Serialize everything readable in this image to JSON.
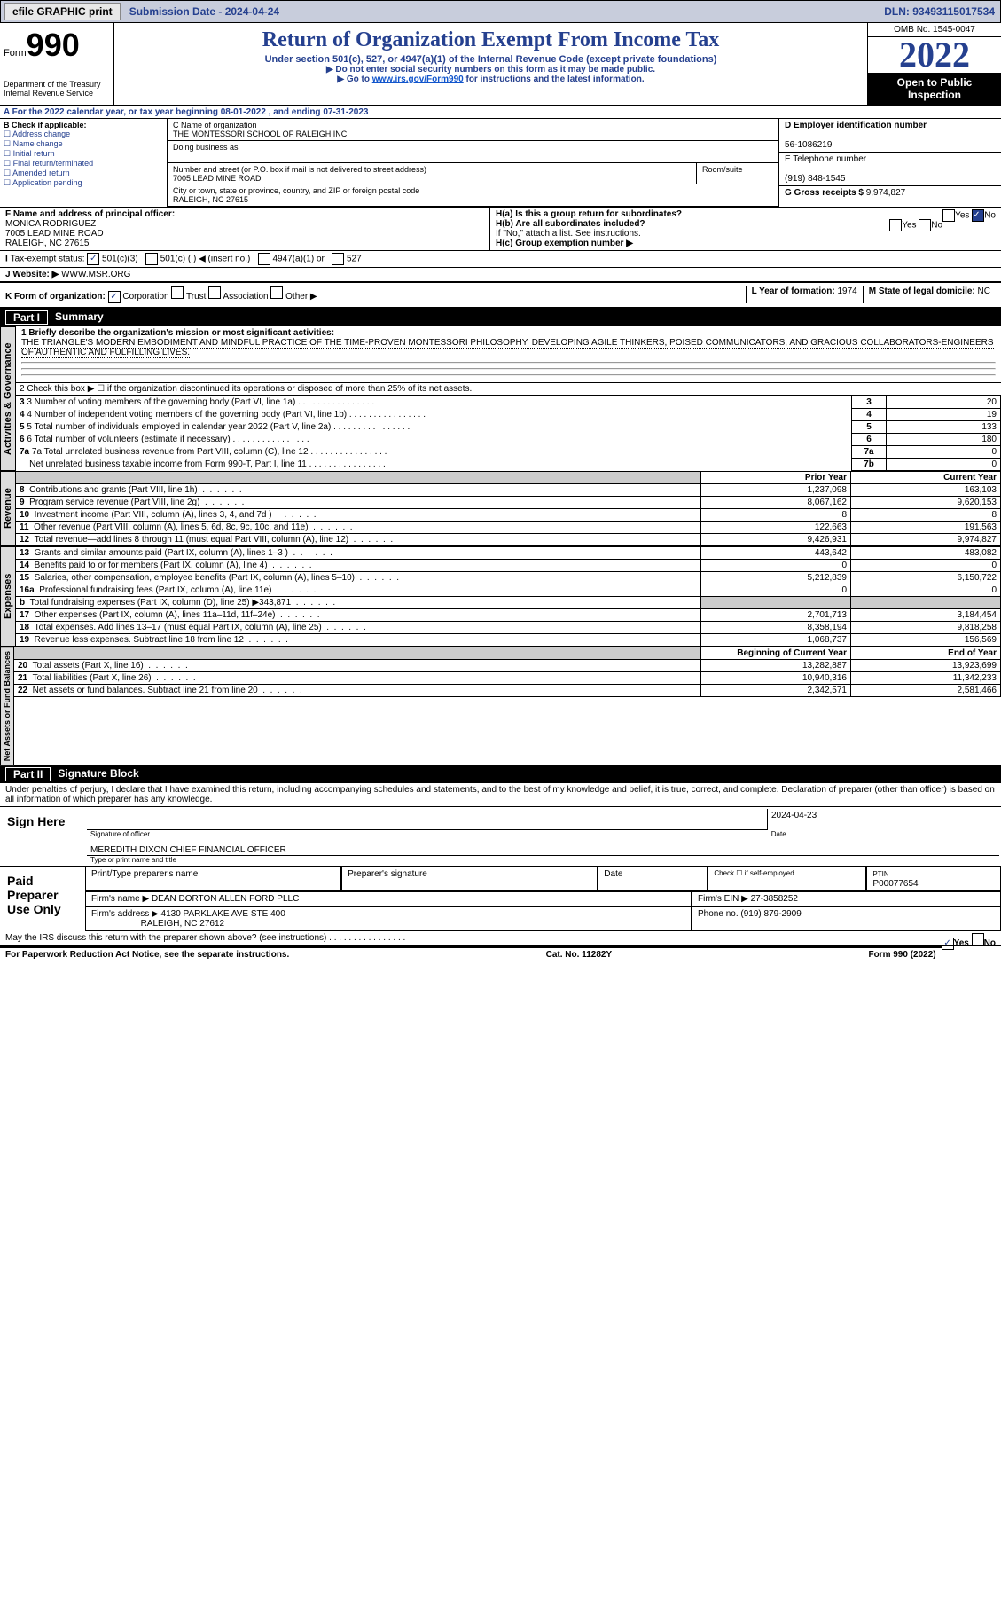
{
  "topbar": {
    "efile": "efile GRAPHIC print",
    "subdate_label": "Submission Date - 2024-04-24",
    "dln": "DLN: 93493115017534"
  },
  "hdr": {
    "form": "Form",
    "num": "990",
    "dept": "Department of the Treasury",
    "irs": "Internal Revenue Service",
    "title": "Return of Organization Exempt From Income Tax",
    "sub": "Under section 501(c), 527, or 4947(a)(1) of the Internal Revenue Code (except private foundations)",
    "note1": "▶ Do not enter social security numbers on this form as it may be made public.",
    "note2": "▶ Go to ",
    "link": "www.irs.gov/Form990",
    "note3": " for instructions and the latest information.",
    "omb": "OMB No. 1545-0047",
    "year": "2022",
    "pub": "Open to Public Inspection"
  },
  "A": {
    "text": "A For the 2022 calendar year, or tax year beginning 08-01-2022    , and ending 07-31-2023"
  },
  "B": {
    "label": "B Check if applicable:",
    "items": [
      "Address change",
      "Name change",
      "Initial return",
      "Final return/terminated",
      "Amended return",
      "Application pending"
    ]
  },
  "C": {
    "name_label": "C Name of organization",
    "name": "THE MONTESSORI SCHOOL OF RALEIGH INC",
    "dba": "Doing business as",
    "addr_label": "Number and street (or P.O. box if mail is not delivered to street address)",
    "room": "Room/suite",
    "addr": "7005 LEAD MINE ROAD",
    "city_label": "City or town, state or province, country, and ZIP or foreign postal code",
    "city": "RALEIGH, NC  27615"
  },
  "D": {
    "label": "D Employer identification number",
    "val": "56-1086219"
  },
  "E": {
    "label": "E Telephone number",
    "val": "(919) 848-1545"
  },
  "G": {
    "label": "G Gross receipts $",
    "val": "9,974,827"
  },
  "F": {
    "label": "F  Name and address of principal officer:",
    "name": "MONICA RODRIGUEZ",
    "addr": "7005 LEAD MINE ROAD",
    "city": "RALEIGH, NC  27615"
  },
  "H": {
    "a": "H(a)  Is this a group return for subordinates?",
    "b": "H(b)  Are all subordinates included?",
    "note": "If \"No,\" attach a list. See instructions.",
    "c": "H(c)  Group exemption number ▶",
    "yes": "Yes",
    "no": "No"
  },
  "I": {
    "label": "Tax-exempt status:",
    "opts": [
      "501(c)(3)",
      "501(c) (  ) ◀ (insert no.)",
      "4947(a)(1) or",
      "527"
    ]
  },
  "J": {
    "label": "Website: ▶",
    "val": "WWW.MSR.ORG"
  },
  "K": {
    "label": "K Form of organization:",
    "opts": [
      "Corporation",
      "Trust",
      "Association",
      "Other ▶"
    ]
  },
  "L": {
    "label": "L Year of formation:",
    "val": "1974"
  },
  "M": {
    "label": "M State of legal domicile:",
    "val": "NC"
  },
  "part1": {
    "label": "Part I",
    "title": "Summary"
  },
  "p1": {
    "l1": "1  Briefly describe the organization's mission or most significant activities:",
    "mission": "THE TRIANGLE'S MODERN EMBODIMENT AND MINDFUL PRACTICE OF THE TIME-PROVEN MONTESSORI PHILOSOPHY, DEVELOPING AGILE THINKERS, POISED COMMUNICATORS, AND GRACIOUS COLLABORATORS-ENGINEERS OF AUTHENTIC AND FULFILLING LIVES.",
    "l2": "2   Check this box ▶ ☐  if the organization discontinued its operations or disposed of more than 25% of its net assets.",
    "l3": "3   Number of voting members of the governing body (Part VI, line 1a)",
    "v3": "20",
    "l4": "4   Number of independent voting members of the governing body (Part VI, line 1b)",
    "v4": "19",
    "l5": "5   Total number of individuals employed in calendar year 2022 (Part V, line 2a)",
    "v5": "133",
    "l6": "6   Total number of volunteers (estimate if necessary)",
    "v6": "180",
    "l7a": "7a  Total unrelated business revenue from Part VIII, column (C), line 12",
    "v7a": "0",
    "l7b": "Net unrelated business taxable income from Form 990-T, Part I, line 11",
    "v7b": "0"
  },
  "rev": {
    "prior": "Prior Year",
    "curr": "Current Year",
    "rows": [
      {
        "n": "8",
        "t": "Contributions and grants (Part VIII, line 1h)",
        "p": "1,237,098",
        "c": "163,103"
      },
      {
        "n": "9",
        "t": "Program service revenue (Part VIII, line 2g)",
        "p": "8,067,162",
        "c": "9,620,153"
      },
      {
        "n": "10",
        "t": "Investment income (Part VIII, column (A), lines 3, 4, and 7d )",
        "p": "8",
        "c": "8"
      },
      {
        "n": "11",
        "t": "Other revenue (Part VIII, column (A), lines 5, 6d, 8c, 9c, 10c, and 11e)",
        "p": "122,663",
        "c": "191,563"
      },
      {
        "n": "12",
        "t": "Total revenue—add lines 8 through 11 (must equal Part VIII, column (A), line 12)",
        "p": "9,426,931",
        "c": "9,974,827"
      }
    ]
  },
  "exp": {
    "rows": [
      {
        "n": "13",
        "t": "Grants and similar amounts paid (Part IX, column (A), lines 1–3 )",
        "p": "443,642",
        "c": "483,082"
      },
      {
        "n": "14",
        "t": "Benefits paid to or for members (Part IX, column (A), line 4)",
        "p": "0",
        "c": "0"
      },
      {
        "n": "15",
        "t": "Salaries, other compensation, employee benefits (Part IX, column (A), lines 5–10)",
        "p": "5,212,839",
        "c": "6,150,722"
      },
      {
        "n": "16a",
        "t": "Professional fundraising fees (Part IX, column (A), line 11e)",
        "p": "0",
        "c": "0"
      },
      {
        "n": "b",
        "t": "Total fundraising expenses (Part IX, column (D), line 25) ▶343,871",
        "p": "",
        "c": "",
        "shade": true
      },
      {
        "n": "17",
        "t": "Other expenses (Part IX, column (A), lines 11a–11d, 11f–24e)",
        "p": "2,701,713",
        "c": "3,184,454"
      },
      {
        "n": "18",
        "t": "Total expenses. Add lines 13–17 (must equal Part IX, column (A), line 25)",
        "p": "8,358,194",
        "c": "9,818,258"
      },
      {
        "n": "19",
        "t": "Revenue less expenses. Subtract line 18 from line 12",
        "p": "1,068,737",
        "c": "156,569"
      }
    ]
  },
  "net": {
    "beg": "Beginning of Current Year",
    "end": "End of Year",
    "rows": [
      {
        "n": "20",
        "t": "Total assets (Part X, line 16)",
        "p": "13,282,887",
        "c": "13,923,699"
      },
      {
        "n": "21",
        "t": "Total liabilities (Part X, line 26)",
        "p": "10,940,316",
        "c": "11,342,233"
      },
      {
        "n": "22",
        "t": "Net assets or fund balances. Subtract line 21 from line 20",
        "p": "2,342,571",
        "c": "2,581,466"
      }
    ]
  },
  "part2": {
    "label": "Part II",
    "title": "Signature Block"
  },
  "sig": {
    "penalty": "Under penalties of perjury, I declare that I have examined this return, including accompanying schedules and statements, and to the best of my knowledge and belief, it is true, correct, and complete. Declaration of preparer (other than officer) is based on all information of which preparer has any knowledge.",
    "sign_here": "Sign Here",
    "sig_officer": "Signature of officer",
    "date": "Date",
    "date_val": "2024-04-23",
    "name_title": "Type or print name and title",
    "name_val": "MEREDITH DIXON  CHIEF FINANCIAL OFFICER",
    "paid": "Paid Preparer Use Only",
    "prep_name": "Print/Type preparer's name",
    "prep_sig": "Preparer's signature",
    "check": "Check ☐ if self-employed",
    "ptin": "PTIN",
    "ptin_val": "P00077654",
    "firm_name": "Firm's name    ▶",
    "firm_name_val": "DEAN DORTON ALLEN FORD PLLC",
    "firm_ein": "Firm's EIN ▶",
    "firm_ein_val": "27-3858252",
    "firm_addr": "Firm's address ▶",
    "firm_addr_val": "4130 PARKLAKE AVE STE 400",
    "firm_city": "RALEIGH, NC  27612",
    "phone": "Phone no.",
    "phone_val": "(919) 879-2909",
    "discuss": "May the IRS discuss this return with the preparer shown above? (see instructions)"
  },
  "footer": {
    "l": "For Paperwork Reduction Act Notice, see the separate instructions.",
    "c": "Cat. No. 11282Y",
    "r": "Form 990 (2022)"
  },
  "sides": {
    "act": "Activities & Governance",
    "rev": "Revenue",
    "exp": "Expenses",
    "net": "Net Assets or Fund Balances"
  }
}
